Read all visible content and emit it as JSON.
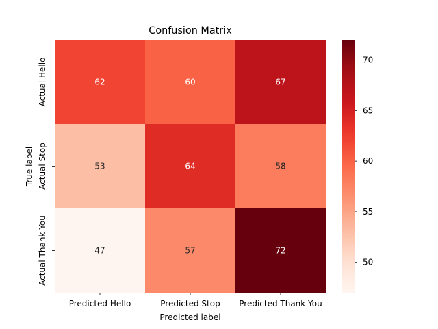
{
  "chart_data": {
    "type": "heatmap",
    "title": "Confusion Matrix",
    "xlabel": "Predicted label",
    "ylabel": "True label",
    "x_categories": [
      "Predicted Hello",
      "Predicted Stop",
      "Predicted Thank You"
    ],
    "y_categories": [
      "Actual Hello",
      "Actual Stop",
      "Actual Thank You"
    ],
    "values": [
      [
        62,
        60,
        67
      ],
      [
        53,
        64,
        58
      ],
      [
        47,
        57,
        72
      ]
    ],
    "colormap": "Reds",
    "color_range": [
      47,
      72
    ],
    "colorbar_ticks": [
      50,
      55,
      60,
      65,
      70
    ],
    "grid": false
  }
}
